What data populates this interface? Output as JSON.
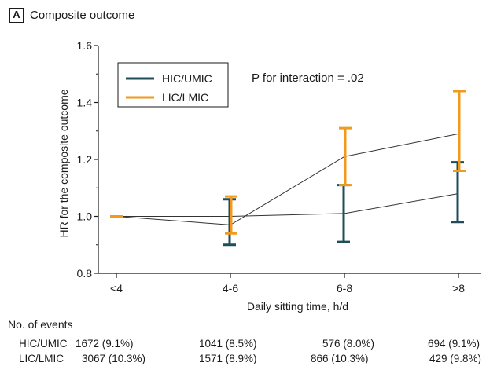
{
  "panel": {
    "letter": "A",
    "title": "Composite outcome"
  },
  "chart_data": {
    "type": "line",
    "categories": [
      "<4",
      "4-6",
      "6-8",
      ">8"
    ],
    "xlabel": "Daily sitting time, h/d",
    "ylabel": "HR for the composite outcome",
    "ylim": [
      0.8,
      1.6
    ],
    "yticks": [
      "0.8",
      "1.0",
      "1.2",
      "1.4",
      "1.6"
    ],
    "annotation": "P for interaction = .02",
    "legend_position": "top-left",
    "grid": false,
    "series": [
      {
        "name": "HIC/UMIC",
        "color": "#1f4e5a",
        "values": [
          1.0,
          1.0,
          1.01,
          1.08
        ],
        "lower": [
          null,
          0.9,
          0.91,
          0.98
        ],
        "upper": [
          null,
          1.06,
          1.11,
          1.19
        ]
      },
      {
        "name": "LIC/LMIC",
        "color": "#f39a1e",
        "values": [
          1.0,
          0.97,
          1.21,
          1.29
        ],
        "lower": [
          null,
          0.94,
          1.11,
          1.16
        ],
        "upper": [
          null,
          1.07,
          1.31,
          1.44
        ]
      }
    ]
  },
  "events": {
    "heading": "No. of events",
    "rows": [
      {
        "label": "HIC/UMIC",
        "values": [
          "1672 (9.1%)",
          "1041 (8.5%)",
          "576 (8.0%)",
          "694 (9.1%)"
        ]
      },
      {
        "label": "LIC/LMIC",
        "values": [
          "3067 (10.3%)",
          "1571 (8.9%)",
          "866 (10.3%)",
          "429 (9.8%)"
        ]
      }
    ]
  }
}
